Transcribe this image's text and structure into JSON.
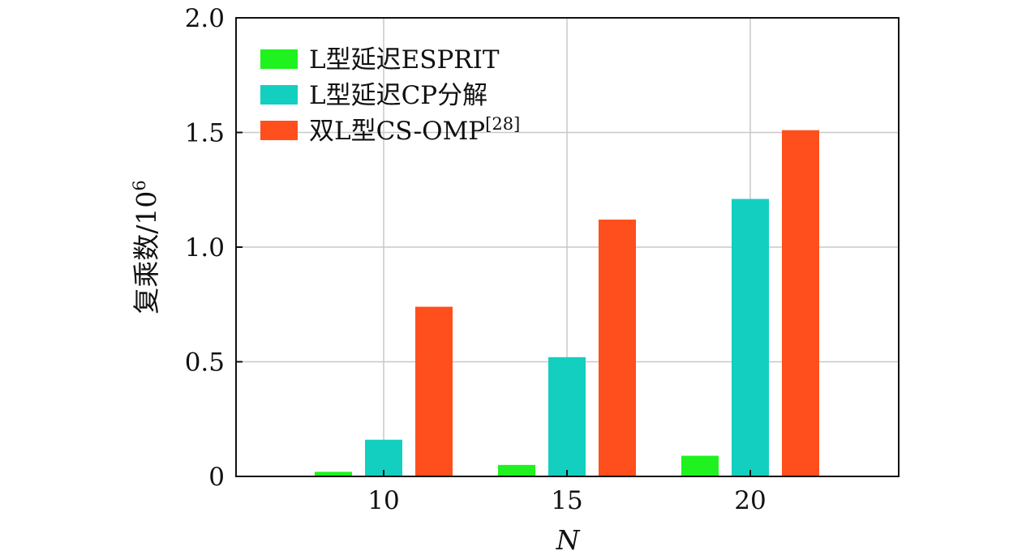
{
  "chart_data": {
    "type": "bar",
    "categories": [
      "10",
      "15",
      "20"
    ],
    "series": [
      {
        "name": "L型延迟ESPRIT",
        "values": [
          0.02,
          0.05,
          0.09
        ],
        "color": "#1ff21f"
      },
      {
        "name": "L型延迟CP分解",
        "values": [
          0.16,
          0.52,
          1.21
        ],
        "color": "#12cfc0"
      },
      {
        "name": "双L型CS-OMP",
        "name_superscript": "[28]",
        "values": [
          0.74,
          1.12,
          1.51
        ],
        "color": "#ff4f1c"
      }
    ],
    "xlabel": "N",
    "ylabel": "复乘数/10",
    "ylabel_superscript": "6",
    "ylim": [
      0,
      2.0
    ],
    "yticks": [
      "0",
      "0.5",
      "1.0",
      "1.5",
      "2.0"
    ],
    "grid": true,
    "legend_position": "top-left"
  }
}
